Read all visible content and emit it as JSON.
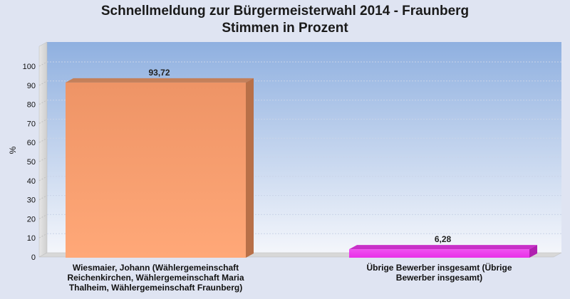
{
  "title": "Schnellmeldung zur Bürgermeisterwahl 2014 - Fraunberg",
  "subtitle": "Stimmen in Prozent",
  "chart_data": {
    "type": "bar",
    "title": "Schnellmeldung zur Bürgermeisterwahl 2014 - Fraunberg",
    "subtitle": "Stimmen in Prozent",
    "ylabel": "%",
    "xlabel": "",
    "ylim": [
      0,
      100
    ],
    "yticks": [
      0,
      10,
      20,
      30,
      40,
      50,
      60,
      70,
      80,
      90,
      100
    ],
    "grid": true,
    "categories": [
      "Wiesmaier, Johann (Wählergemeinschaft Reichenkirchen, Wählergemeinschaft Maria Thalheim, Wählergemeinschaft Fraunberg)",
      "Übrige Bewerber insgesamt (Übrige Bewerber insgesamt)"
    ],
    "category_lines": [
      [
        "Wiesmaier, Johann (Wählergemeinschaft",
        "Reichenkirchen, Wählergemeinschaft Maria",
        "Thalheim, Wählergemeinschaft Fraunberg)"
      ],
      [
        "Übrige Bewerber insgesamt (Übrige",
        "Bewerber insgesamt)"
      ]
    ],
    "values": [
      93.72,
      6.28
    ],
    "value_labels": [
      "93,72",
      "6,28"
    ],
    "colors": [
      "#f4a070",
      "#f040f0"
    ]
  }
}
